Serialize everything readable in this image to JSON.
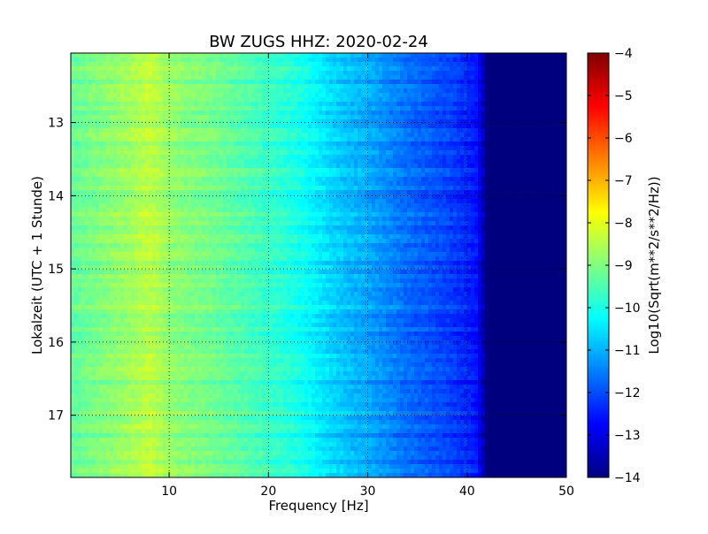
{
  "chart_data": {
    "type": "heatmap",
    "title": "BW ZUGS HHZ: 2020-02-24",
    "xlabel": "Frequency [Hz]",
    "ylabel": "Lokalzeit (UTC + 1 Stunde)",
    "xlim": [
      0.1,
      50
    ],
    "ylim": [
      12.05,
      17.85
    ],
    "y_inverted": true,
    "x_ticks": [
      10,
      20,
      30,
      40,
      50
    ],
    "y_ticks": [
      13,
      14,
      15,
      16,
      17
    ],
    "grid": true,
    "colorbar": {
      "label": "Log10(Sqrt(m**2/s**2/Hz))",
      "colormap": "jet",
      "range": [
        -14,
        -4
      ],
      "ticks": [
        -4,
        -5,
        -6,
        -7,
        -8,
        -9,
        -10,
        -11,
        -12,
        -13,
        -14
      ]
    },
    "spectrum_profile": {
      "frequency_hz": [
        0.1,
        2,
        4,
        6,
        8,
        10,
        12,
        14,
        16,
        18,
        20,
        22,
        24,
        26,
        28,
        30,
        32,
        34,
        36,
        38,
        40,
        41,
        42,
        44,
        46,
        48,
        50
      ],
      "log10_amplitude": [
        -9.3,
        -9.1,
        -8.9,
        -8.7,
        -8.4,
        -8.8,
        -9.0,
        -9.1,
        -9.3,
        -9.5,
        -9.7,
        -9.9,
        -10.2,
        -10.6,
        -10.9,
        -11.1,
        -11.4,
        -11.7,
        -11.9,
        -12.1,
        -12.4,
        -12.6,
        -14,
        -14,
        -14,
        -14,
        -14
      ]
    }
  }
}
